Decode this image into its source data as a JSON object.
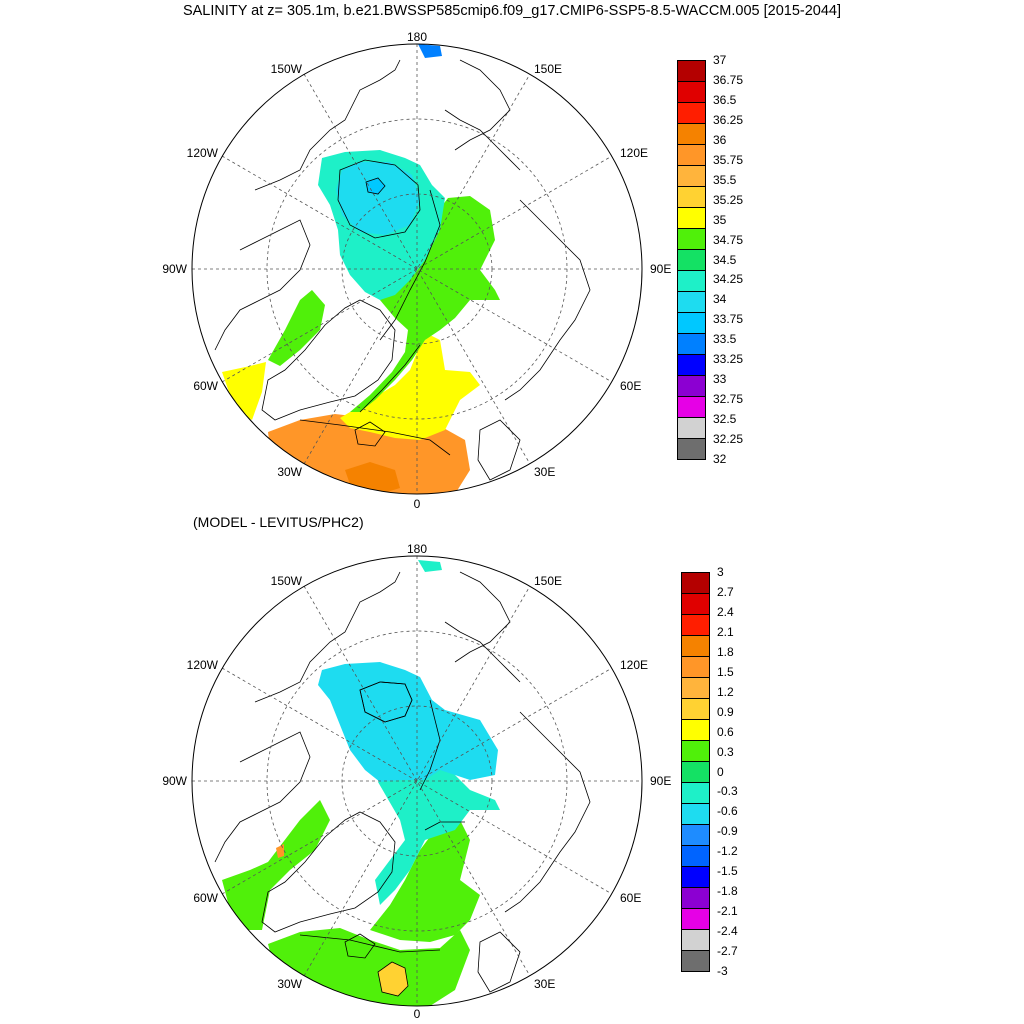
{
  "title": "SALINITY at z= 305.1m, b.e21.BWSSP585cmip6.f09_g17.CMIP6-SSP5-8.5-WACCM.005 [2015-2044]",
  "subtitle": "(MODEL - LEVITUS/PHC2)",
  "longitude_labels": {
    "l180": "180",
    "l150w": "150W",
    "l150e": "150E",
    "l120w": "120W",
    "l120e": "120E",
    "l90w": "90W",
    "l90e": "90E",
    "l60w": "60W",
    "l60e": "60E",
    "l30w": "30W",
    "l30e": "30E",
    "l0": "0"
  },
  "colorbar_top": {
    "labels": [
      "37",
      "36.75",
      "36.5",
      "36.25",
      "36",
      "35.75",
      "35.5",
      "35.25",
      "35",
      "34.75",
      "34.5",
      "34.25",
      "34",
      "33.75",
      "33.5",
      "33.25",
      "33",
      "32.75",
      "32.5",
      "32.25",
      "32"
    ],
    "colors": [
      "#b40000",
      "#e00000",
      "#ff1e00",
      "#f58200",
      "#ff9628",
      "#ffb43c",
      "#ffd232",
      "#ffff00",
      "#50f00a",
      "#14e164",
      "#1ef0c8",
      "#1edcf0",
      "#00c8ff",
      "#0080ff",
      "#0000ff",
      "#8c00d2",
      "#e600e6",
      "#d2d2d2",
      "#6e6e6e"
    ]
  },
  "colorbar_bottom": {
    "labels": [
      "3",
      "2.7",
      "2.4",
      "2.1",
      "1.8",
      "1.5",
      "1.2",
      "0.9",
      "0.6",
      "0.3",
      "0",
      "-0.3",
      "-0.6",
      "-0.9",
      "-1.2",
      "-1.5",
      "-1.8",
      "-2.1",
      "-2.4",
      "-2.7",
      "-3"
    ],
    "colors": [
      "#b40000",
      "#e00000",
      "#ff1e00",
      "#f58200",
      "#ff9628",
      "#ffb43c",
      "#ffd232",
      "#ffff00",
      "#50f00a",
      "#14e164",
      "#1ef0c8",
      "#1edcf0",
      "#1e8cff",
      "#0064ff",
      "#0000ff",
      "#8c00d2",
      "#e600e6",
      "#d2d2d2",
      "#6e6e6e"
    ]
  }
}
